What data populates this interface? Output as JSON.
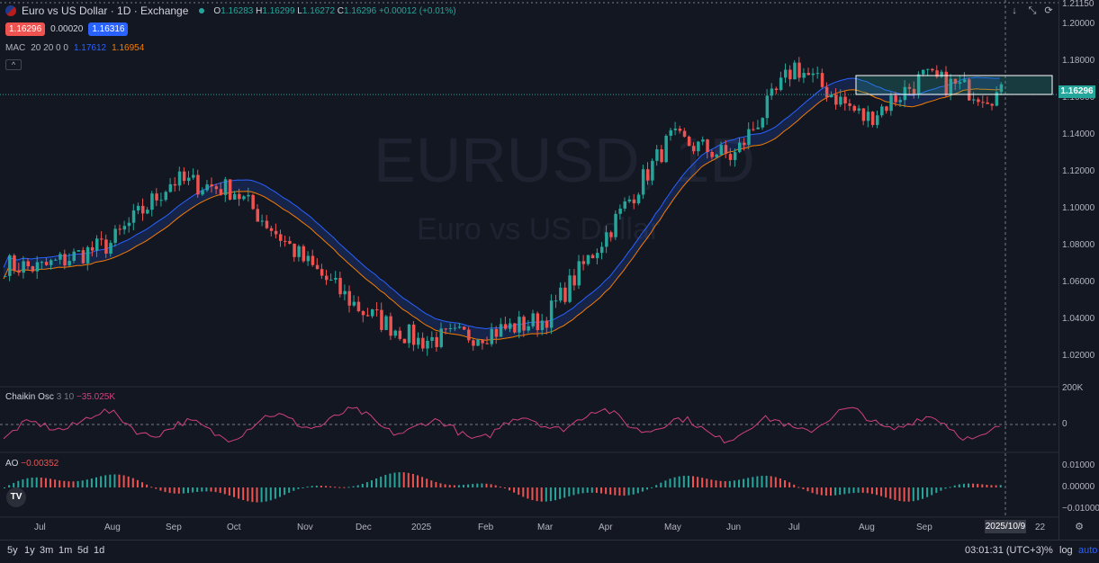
{
  "header": {
    "symbol_title": "Euro vs US Dollar · 1D · Exchange",
    "ohlc": {
      "o_label": "O",
      "o": "1.16283",
      "h_label": "H",
      "h": "1.16299",
      "l_label": "L",
      "l": "1.16272",
      "c_label": "C",
      "c": "1.16296",
      "chg": "+0.00012 (+0.01%)"
    },
    "sell_price": "1.16296",
    "spread": "0.00020",
    "buy_price": "1.16316"
  },
  "indicators": {
    "mac": {
      "name": "MAC",
      "params": "20 20 0 0",
      "upper": "1.17612",
      "lower": "1.16954"
    },
    "chaikin": {
      "name": "Chaikin Osc",
      "params": "3 10",
      "value": "−35.025K"
    },
    "ao": {
      "name": "AO",
      "value": "−0.00352"
    }
  },
  "watermark": {
    "symbol": "EURUSD, 1D",
    "description": "Euro vs US Dollar"
  },
  "price_axis": {
    "top_label": "1.21150",
    "ticks": [
      "1.20000",
      "1.18000",
      "1.16000",
      "1.14000",
      "1.12000",
      "1.10000",
      "1.08000",
      "1.06000",
      "1.04000",
      "1.02000"
    ],
    "last_price": "1.16296"
  },
  "chaikin_axis": {
    "ticks": [
      "200K",
      "0"
    ]
  },
  "ao_axis": {
    "ticks": [
      "0.01000",
      "0.00000",
      "−0.01000"
    ]
  },
  "time_axis": {
    "labels": [
      "Jul",
      "Aug",
      "Sep",
      "Oct",
      "Nov",
      "Dec",
      "2025",
      "Feb",
      "Mar",
      "Apr",
      "May",
      "Jun",
      "Jul",
      "Aug",
      "Sep",
      "22"
    ],
    "crosshair_date": "2025/10/9"
  },
  "bottom_bar": {
    "ranges": [
      "5y",
      "1y",
      "3m",
      "1m",
      "5d",
      "1d"
    ],
    "time": "03:01:31 (UTC+3)",
    "percent": "%",
    "log": "log",
    "auto": "auto"
  },
  "colors": {
    "up": "#26a69a",
    "down": "#ef5350",
    "band_upper": "#2962ff",
    "band_lower": "#f57c00",
    "chaikin": "#d0417a",
    "bg": "#131722"
  },
  "chart_data": {
    "type": "candlestick",
    "title": "Euro vs US Dollar · 1D · Exchange",
    "x_months": [
      "Jul",
      "Aug",
      "Sep",
      "Oct",
      "Nov",
      "Dec",
      "2025",
      "Feb",
      "Mar",
      "Apr",
      "May",
      "Jun",
      "Jul",
      "Aug",
      "Sep"
    ],
    "ylim": [
      1.01,
      1.2115
    ],
    "close_path_by_month": [
      {
        "month": "Jul",
        "close": 1.072
      },
      {
        "month": "Aug",
        "close": 1.085
      },
      {
        "month": "Sep",
        "close": 1.118
      },
      {
        "month": "Oct",
        "close": 1.113
      },
      {
        "month": "Nov",
        "close": 1.076
      },
      {
        "month": "Dec",
        "close": 1.05
      },
      {
        "month": "2025",
        "close": 1.034
      },
      {
        "month": "Feb",
        "close": 1.038
      },
      {
        "month": "Mar",
        "close": 1.045
      },
      {
        "month": "Apr",
        "close": 1.09
      },
      {
        "month": "May",
        "close": 1.14
      },
      {
        "month": "Jun",
        "close": 1.13
      },
      {
        "month": "Jul",
        "close": 1.178
      },
      {
        "month": "Aug",
        "close": 1.15
      },
      {
        "month": "Sep",
        "close": 1.172
      },
      {
        "month": "Oct",
        "close": 1.163
      }
    ],
    "series": [
      {
        "name": "MAC",
        "upper": "1.17612",
        "lower": "1.16954"
      }
    ],
    "last_price": 1.16296
  }
}
